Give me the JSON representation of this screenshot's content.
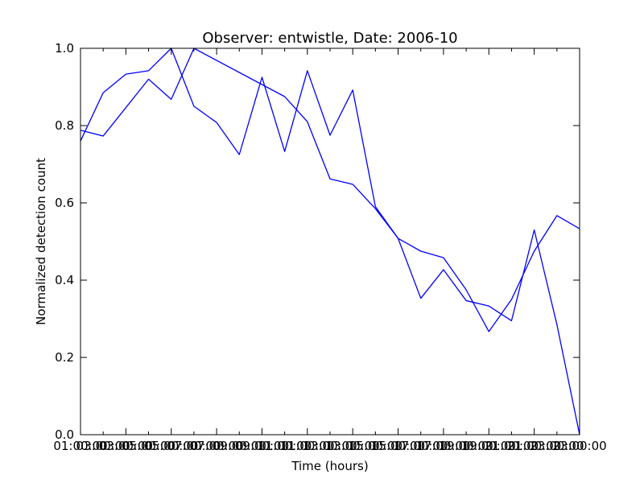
{
  "chart_data": {
    "type": "line",
    "title": "Observer: entwistle, Date: 2006-10",
    "xlabel": "Time (hours)",
    "ylabel": "Normalized detection count",
    "xlim": [
      1,
      23
    ],
    "ylim": [
      0,
      1
    ],
    "x_ticks": [
      {
        "value": 1,
        "label": "01:00:00"
      },
      {
        "value": 3,
        "label": "03:00:00"
      },
      {
        "value": 5,
        "label": "05:00:00"
      },
      {
        "value": 7,
        "label": "07:00:00"
      },
      {
        "value": 9,
        "label": "09:00:00"
      },
      {
        "value": 11,
        "label": "11:00:00"
      },
      {
        "value": 13,
        "label": "13:00:00"
      },
      {
        "value": 15,
        "label": "15:00:00"
      },
      {
        "value": 17,
        "label": "17:00:00"
      },
      {
        "value": 19,
        "label": "19:00:00"
      },
      {
        "value": 21,
        "label": "21:00:00"
      },
      {
        "value": 23,
        "label": "23:00:00"
      }
    ],
    "x_ticks_overlay": [
      {
        "value": 2,
        "label": "03:00:00"
      },
      {
        "value": 4,
        "label": "05:00:00"
      },
      {
        "value": 6,
        "label": "07:00:00"
      },
      {
        "value": 8,
        "label": "09:00:00"
      },
      {
        "value": 10,
        "label": "11:00:00"
      },
      {
        "value": 12,
        "label": "13:00:00"
      },
      {
        "value": 14,
        "label": "15:00:00"
      },
      {
        "value": 16,
        "label": "17:00:00"
      },
      {
        "value": 18,
        "label": "19:00:00"
      },
      {
        "value": 20,
        "label": "21:00:00"
      },
      {
        "value": 22,
        "label": "23:00:00"
      }
    ],
    "y_ticks": [
      0.0,
      0.2,
      0.4,
      0.6,
      0.8,
      1.0
    ],
    "y_tick_labels": [
      "0.0",
      "0.2",
      "0.4",
      "0.6",
      "0.8",
      "1.0"
    ],
    "grid": false,
    "series": [
      {
        "color": "#0000ff",
        "points": [
          [
            1,
            0.76
          ],
          [
            2,
            0.885
          ],
          [
            3,
            0.933
          ],
          [
            4,
            0.942
          ],
          [
            5,
            1.0
          ],
          [
            6,
            0.85
          ],
          [
            7,
            0.808
          ],
          [
            8,
            0.725
          ],
          [
            9,
            0.925
          ],
          [
            10,
            0.733
          ],
          [
            11,
            0.942
          ],
          [
            12,
            0.775
          ],
          [
            13,
            0.892
          ],
          [
            14,
            0.59
          ],
          [
            15,
            0.508
          ],
          [
            16,
            0.475
          ],
          [
            17,
            0.458
          ],
          [
            18,
            0.375
          ],
          [
            19,
            0.267
          ],
          [
            20,
            0.35
          ],
          [
            21,
            0.475
          ],
          [
            22,
            0.567
          ],
          [
            23,
            0.533
          ]
        ]
      },
      {
        "color": "#0000ff",
        "points": [
          [
            1,
            0.788
          ],
          [
            2,
            0.773
          ],
          [
            4,
            0.92
          ],
          [
            5,
            0.868
          ],
          [
            6,
            1.0
          ],
          [
            10,
            0.875
          ],
          [
            11,
            0.81
          ],
          [
            12,
            0.662
          ],
          [
            13,
            0.648
          ],
          [
            14,
            0.585
          ],
          [
            15,
            0.508
          ],
          [
            16,
            0.353
          ],
          [
            17,
            0.427
          ],
          [
            18,
            0.347
          ],
          [
            19,
            0.333
          ],
          [
            20,
            0.295
          ],
          [
            21,
            0.53
          ],
          [
            22,
            0.285
          ],
          [
            23,
            0.0
          ]
        ]
      }
    ]
  }
}
